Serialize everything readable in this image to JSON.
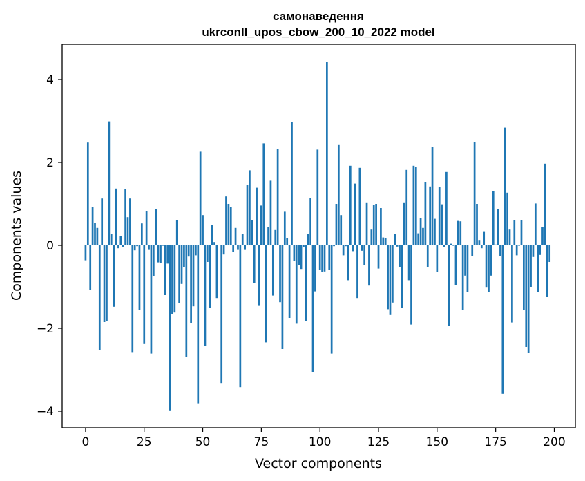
{
  "chart_data": {
    "type": "bar",
    "title": "самонаведення",
    "subtitle": "ukrconll_upos_cbow_200_10_2022 model",
    "xlabel": "Vector components",
    "ylabel": "Components values",
    "xlim": [
      -10,
      209
    ],
    "ylim": [
      -4.4,
      4.85
    ],
    "xticks": [
      0,
      25,
      50,
      75,
      100,
      125,
      150,
      175,
      200
    ],
    "yticks": [
      -4,
      -2,
      0,
      2,
      4
    ],
    "ytick_labels": [
      "−4",
      "−2",
      "0",
      "2",
      "4"
    ],
    "grid": false,
    "bar_color": "#1f77b4",
    "values": [
      -0.36,
      2.48,
      -1.08,
      0.92,
      0.55,
      0.42,
      -2.52,
      1.13,
      -1.85,
      -1.83,
      2.99,
      0.27,
      -1.48,
      1.37,
      -0.07,
      0.22,
      -0.05,
      1.35,
      0.68,
      1.13,
      -2.59,
      -0.12,
      -0.02,
      -1.55,
      0.53,
      -2.38,
      0.83,
      -0.11,
      -2.61,
      -0.74,
      0.87,
      -0.41,
      -0.42,
      -0.01,
      -1.2,
      -0.44,
      -3.98,
      -1.65,
      -1.62,
      0.6,
      -1.39,
      -0.93,
      -0.52,
      -2.7,
      -0.27,
      -1.88,
      -1.47,
      -0.24,
      -3.81,
      2.26,
      0.73,
      -2.42,
      -0.4,
      -1.5,
      0.5,
      0.08,
      -1.27,
      0.0,
      -3.32,
      -0.22,
      1.18,
      1.0,
      0.93,
      -0.16,
      0.42,
      -0.11,
      -3.42,
      0.28,
      -0.11,
      1.45,
      1.81,
      0.6,
      -0.91,
      1.39,
      -1.46,
      0.96,
      2.46,
      -2.34,
      0.45,
      1.56,
      -1.21,
      0.37,
      2.33,
      -1.37,
      -2.5,
      0.81,
      0.18,
      -1.75,
      2.97,
      -0.37,
      -1.89,
      -0.48,
      -0.57,
      -0.05,
      -1.82,
      0.28,
      1.14,
      -3.06,
      -1.11,
      2.31,
      -0.6,
      -0.65,
      -0.63,
      4.42,
      -0.6,
      -2.61,
      -0.02,
      1.0,
      2.42,
      0.73,
      -0.24,
      -0.02,
      -0.84,
      1.92,
      -0.14,
      1.49,
      -1.27,
      1.87,
      -0.13,
      -0.47,
      1.02,
      -0.97,
      0.38,
      0.97,
      1.0,
      -0.56,
      0.9,
      0.19,
      0.18,
      -1.54,
      -1.68,
      -1.38,
      0.27,
      -0.03,
      -0.53,
      -1.5,
      1.02,
      1.82,
      -0.84,
      -1.91,
      1.92,
      1.9,
      0.29,
      0.66,
      0.42,
      1.52,
      -0.52,
      1.42,
      2.37,
      0.64,
      -0.65,
      1.4,
      0.99,
      -0.05,
      1.77,
      -1.95,
      0.04,
      -0.01,
      -0.95,
      0.59,
      0.58,
      -1.55,
      -0.73,
      -1.12,
      0.0,
      -0.26,
      2.49,
      1.0,
      0.13,
      -0.07,
      0.34,
      -1.02,
      -1.12,
      -0.73,
      1.3,
      0.02,
      0.88,
      -0.25,
      -3.58,
      2.84,
      1.27,
      0.38,
      -1.86,
      0.61,
      -0.24,
      -0.01,
      0.6,
      -1.55,
      -2.45,
      -2.6,
      -1.01,
      -0.28,
      1.01,
      -1.12,
      -0.23,
      0.45,
      1.97,
      -1.25,
      -0.4
    ]
  }
}
